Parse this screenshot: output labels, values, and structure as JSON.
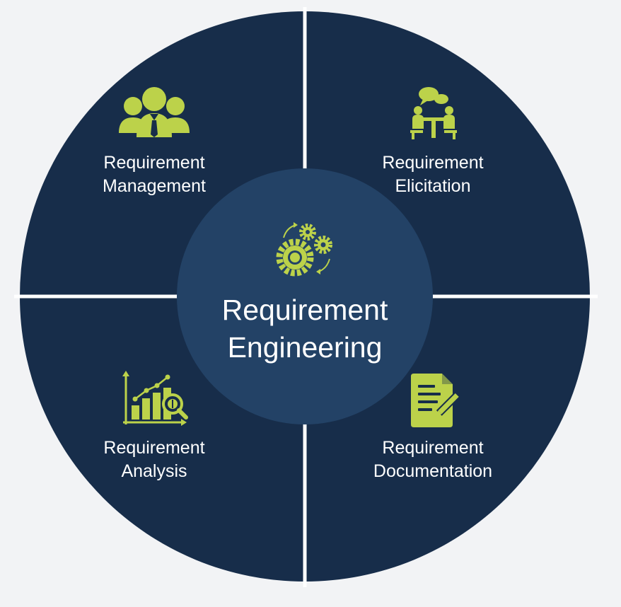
{
  "diagram": {
    "type": "circular-quadrant",
    "center": {
      "line1": "Requirement",
      "line2": "Engineering",
      "icon": "gears-icon"
    },
    "quadrants": [
      {
        "position": "top-left",
        "line1": "Requirement",
        "line2": "Management",
        "icon": "team-icon"
      },
      {
        "position": "top-right",
        "line1": "Requirement",
        "line2": "Elicitation",
        "icon": "meeting-icon"
      },
      {
        "position": "bottom-left",
        "line1": "Requirement",
        "line2": "Analysis",
        "icon": "analysis-chart-icon"
      },
      {
        "position": "bottom-right",
        "line1": "Requirement",
        "line2": "Documentation",
        "icon": "document-edit-icon"
      }
    ]
  },
  "colors": {
    "background": "#f2f3f5",
    "quadrant": "#172d4a",
    "center": "#234266",
    "accent": "#bcd24a",
    "text": "#ffffff",
    "divider": "#ffffff"
  }
}
